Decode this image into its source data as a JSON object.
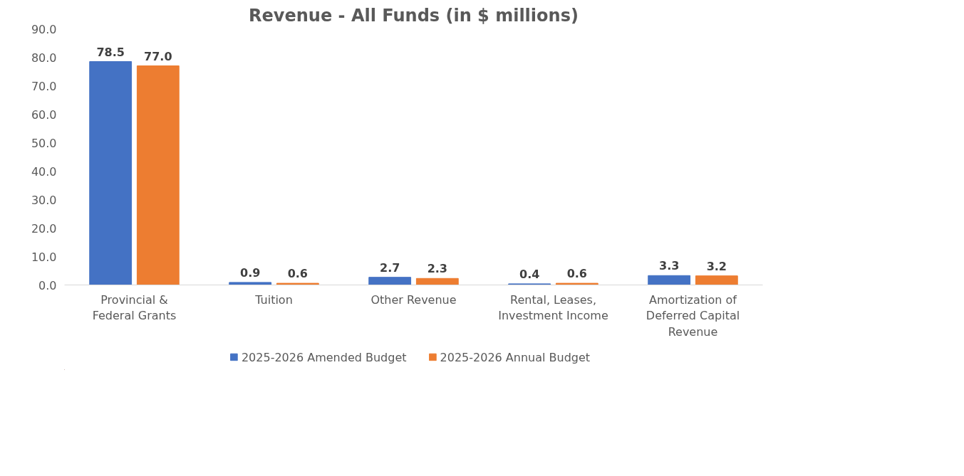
{
  "chart_data": {
    "type": "bar",
    "title": "Revenue - All Funds (in $ millions)",
    "categories": [
      "Provincial & Federal Grants",
      "Tuition",
      "Other Revenue",
      "Rental, Leases, Investment Income",
      "Amortization of Deferred Capital Revenue"
    ],
    "series": [
      {
        "name": "2025-2026 Amended Budget",
        "color": "#4472c4",
        "values": [
          78.5,
          0.9,
          2.7,
          0.4,
          3.3
        ],
        "value_labels": [
          "78.5",
          "0.9",
          "2.7",
          "0.4",
          "3.3"
        ]
      },
      {
        "name": "2025-2026 Annual Budget",
        "color": "#ed7d31",
        "values": [
          77.0,
          0.6,
          2.3,
          0.6,
          3.2
        ],
        "value_labels": [
          "77.0",
          "0.6",
          "2.3",
          "0.6",
          "3.2"
        ]
      }
    ],
    "ylim": [
      0,
      90
    ],
    "yticks": [
      {
        "value": 0,
        "label": "0.0"
      },
      {
        "value": 10,
        "label": "10.0"
      },
      {
        "value": 20,
        "label": "20.0"
      },
      {
        "value": 30,
        "label": "30.0"
      },
      {
        "value": 40,
        "label": "40.0"
      },
      {
        "value": 50,
        "label": "50.0"
      },
      {
        "value": 60,
        "label": "60.0"
      },
      {
        "value": 70,
        "label": "70.0"
      },
      {
        "value": 80,
        "label": "80.0"
      },
      {
        "value": 90,
        "label": "90.0"
      }
    ],
    "grid": false,
    "legend": "bottom"
  }
}
